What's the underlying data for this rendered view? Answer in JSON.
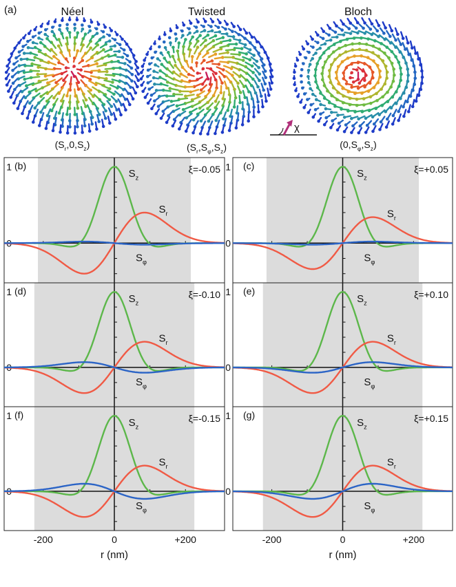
{
  "panel_a": {
    "label": "(a)",
    "textures": [
      {
        "name": "Néel",
        "components": [
          "S",
          "r",
          ",0,",
          "S",
          "z"
        ],
        "kind": "neel"
      },
      {
        "name": "Twisted",
        "components": [
          "S",
          "r",
          ",",
          "S",
          "φ",
          ",",
          "S",
          "z"
        ],
        "kind": "twisted"
      },
      {
        "name": "Bloch",
        "components": [
          "0,",
          "S",
          "φ",
          ",",
          "S",
          "z"
        ],
        "kind": "bloch"
      }
    ],
    "chi_symbol": "χ"
  },
  "axes": {
    "xlabel": "r (nm)",
    "xticks": [
      "-200",
      "0",
      "+200"
    ],
    "ytick_one": "1",
    "ytick_zero": "0"
  },
  "curve_labels": {
    "sz": {
      "main": "S",
      "sub": "z"
    },
    "sr": {
      "main": "S",
      "sub": "r"
    },
    "sphi": {
      "main": "S",
      "sub": "φ"
    }
  },
  "colors": {
    "sz": "#5cb74a",
    "sr": "#f05a45",
    "sphi": "#2b64c6",
    "shade": "#dcdcdc"
  },
  "chart_data": [
    {
      "panel": "(b)",
      "type": "line",
      "xi": "ξ=-0.05",
      "xlim": [
        -310,
        310
      ],
      "ylim": [
        -0.52,
        1.12
      ],
      "shade": [
        -215,
        215
      ],
      "series": [
        {
          "name": "Sz"
        },
        {
          "name": "Sr",
          "amp": 0.4
        },
        {
          "name": "Sφ",
          "amp": 0.02
        }
      ]
    },
    {
      "panel": "(c)",
      "type": "line",
      "xi": "ξ=+0.05",
      "xlim": [
        -310,
        310
      ],
      "ylim": [
        -0.52,
        1.12
      ],
      "shade": [
        -215,
        215
      ],
      "series": [
        {
          "name": "Sz"
        },
        {
          "name": "Sr",
          "amp": 0.34
        },
        {
          "name": "Sφ",
          "amp": -0.02
        }
      ]
    },
    {
      "panel": "(d)",
      "type": "line",
      "xi": "ξ=-0.10",
      "xlim": [
        -310,
        310
      ],
      "ylim": [
        -0.52,
        1.12
      ],
      "shade": [
        -225,
        225
      ],
      "series": [
        {
          "name": "Sz"
        },
        {
          "name": "Sr",
          "amp": 0.34
        },
        {
          "name": "Sφ",
          "amp": 0.07
        }
      ]
    },
    {
      "panel": "(e)",
      "type": "line",
      "xi": "ξ=+0.10",
      "xlim": [
        -310,
        310
      ],
      "ylim": [
        -0.52,
        1.12
      ],
      "shade": [
        -225,
        225
      ],
      "series": [
        {
          "name": "Sz"
        },
        {
          "name": "Sr",
          "amp": 0.34
        },
        {
          "name": "Sφ",
          "amp": -0.07
        }
      ]
    },
    {
      "panel": "(f)",
      "type": "line",
      "xi": "ξ=-0.15",
      "xlim": [
        -310,
        310
      ],
      "ylim": [
        -0.52,
        1.12
      ],
      "shade": [
        -225,
        225
      ],
      "series": [
        {
          "name": "Sz"
        },
        {
          "name": "Sr",
          "amp": 0.34
        },
        {
          "name": "Sφ",
          "amp": 0.1
        }
      ]
    },
    {
      "panel": "(g)",
      "type": "line",
      "xi": "ξ=+0.15",
      "xlim": [
        -310,
        310
      ],
      "ylim": [
        -0.52,
        1.12
      ],
      "shade": [
        -225,
        225
      ],
      "series": [
        {
          "name": "Sz"
        },
        {
          "name": "Sr",
          "amp": 0.34
        },
        {
          "name": "Sφ",
          "amp": -0.1
        }
      ]
    }
  ]
}
